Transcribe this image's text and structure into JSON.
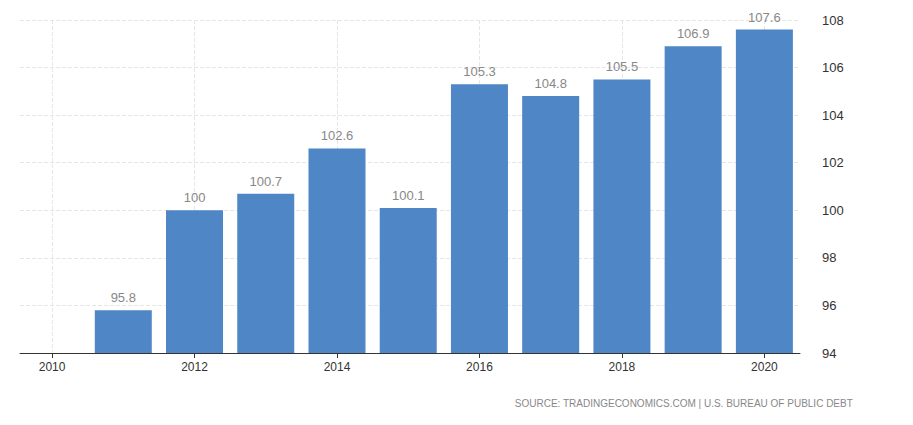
{
  "chart_data": {
    "type": "bar",
    "x": [
      2011,
      2012,
      2013,
      2014,
      2015,
      2016,
      2017,
      2018,
      2019,
      2020
    ],
    "values": [
      95.8,
      100,
      100.7,
      102.6,
      100.1,
      105.3,
      104.8,
      105.5,
      106.9,
      107.6
    ],
    "color": "#4f86c6",
    "xlim": [
      2009.55,
      2020.5
    ],
    "xticks": [
      2010,
      2012,
      2014,
      2016,
      2018,
      2020
    ],
    "ylim": [
      94,
      108
    ],
    "yticks": [
      94,
      96,
      98,
      100,
      102,
      104,
      106,
      108
    ],
    "grid": true,
    "data_labels": true,
    "annotations": [
      "SOURCE: TRADINGECONOMICS.COM | U.S. BUREAU OF PUBLIC DEBT"
    ]
  }
}
